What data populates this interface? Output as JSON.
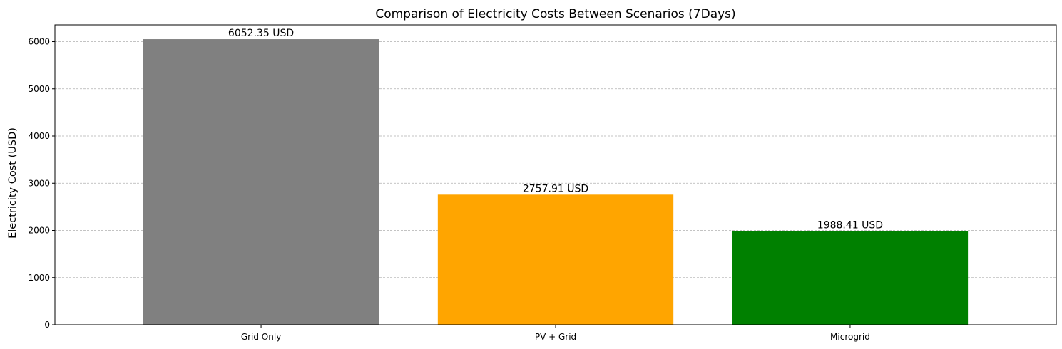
{
  "chart_data": {
    "type": "bar",
    "title": "Comparison of Electricity Costs Between Scenarios (7Days)",
    "xlabel": "",
    "ylabel": "Electricity Cost (USD)",
    "categories": [
      "Grid Only",
      "PV + Grid",
      "Microgrid"
    ],
    "values": [
      6052.35,
      2757.91,
      1988.41
    ],
    "value_labels": [
      "6052.35 USD",
      "2757.91 USD",
      "1988.41 USD"
    ],
    "colors": [
      "#808080",
      "#ffa500",
      "#008000"
    ],
    "ylim": [
      0,
      6355
    ],
    "yticks": [
      0,
      1000,
      2000,
      3000,
      4000,
      5000,
      6000
    ],
    "grid": "y-axis dashed",
    "legend": "none"
  }
}
